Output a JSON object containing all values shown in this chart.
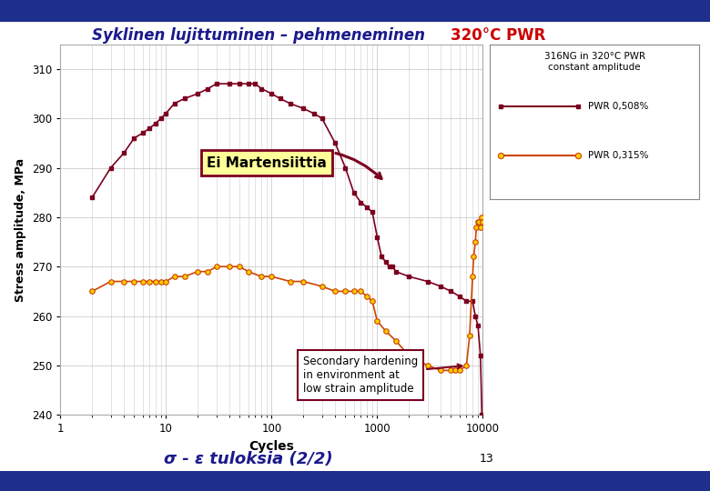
{
  "title_left": "Syklinen lujittuminen – pehmeneminen",
  "title_right": "320°C PWR",
  "xlabel": "Cycles",
  "ylabel": "Stress amplitude, MPa",
  "ylim": [
    240,
    315
  ],
  "yticks": [
    240,
    250,
    260,
    270,
    280,
    290,
    300,
    310
  ],
  "xlim_log": [
    1,
    10000
  ],
  "xticks_log": [
    1,
    10,
    100,
    1000,
    10000
  ],
  "legend_title": "316NG in 320°C PWR\nconstant amplitude",
  "legend_entries": [
    "PWR 0,508%",
    "PWR 0,315%"
  ],
  "annotation1": "Ei Martensiittia",
  "annotation2": "Secondary hardening\nin environment at\nlow strain amplitude",
  "bg_color": "#ffffff",
  "plot_bg_color": "#ffffff",
  "title_left_color": "#1a1a8c",
  "title_right_color": "#cc0000",
  "line1_color": "#7b0020",
  "line2_color": "#cc4400",
  "marker2_color": "#ffcc00",
  "grid_color": "#cccccc",
  "annot1_bg": "#ffff99",
  "annot1_border": "#7b0020",
  "annot2_bg": "#ffffff",
  "annot2_border": "#7b0020",
  "footer_text": "σ - ε tuloksia (2/2)",
  "page_num": "13",
  "top_bar_color": "#1f2f8c",
  "bottom_bar_color": "#1f2f8c",
  "pwr508_x": [
    2,
    3,
    4,
    5,
    6,
    7,
    8,
    9,
    10,
    12,
    15,
    20,
    25,
    30,
    40,
    50,
    60,
    70,
    80,
    100,
    120,
    150,
    200,
    250,
    300,
    400,
    500,
    600,
    700,
    800,
    900,
    1000,
    1100,
    1200,
    1300,
    1400,
    1500,
    2000,
    3000,
    4000,
    5000,
    6000,
    7000,
    8000,
    8500,
    9000,
    9500,
    9800
  ],
  "pwr508_y": [
    284,
    290,
    293,
    296,
    297,
    298,
    299,
    300,
    301,
    303,
    304,
    305,
    306,
    307,
    307,
    307,
    307,
    307,
    306,
    305,
    304,
    303,
    302,
    301,
    300,
    295,
    290,
    285,
    283,
    282,
    281,
    276,
    272,
    271,
    270,
    270,
    269,
    268,
    267,
    266,
    265,
    264,
    263,
    263,
    260,
    258,
    252,
    240
  ],
  "pwr315_x": [
    2,
    3,
    4,
    5,
    6,
    7,
    8,
    9,
    10,
    12,
    15,
    20,
    25,
    30,
    40,
    50,
    60,
    80,
    100,
    150,
    200,
    300,
    400,
    500,
    600,
    700,
    800,
    900,
    1000,
    1200,
    1500,
    2000,
    3000,
    4000,
    5000,
    5500,
    6000,
    7000,
    7500,
    8000,
    8200,
    8500,
    8700,
    9000,
    9200,
    9500,
    9800,
    10000
  ],
  "pwr315_y": [
    265,
    267,
    267,
    267,
    267,
    267,
    267,
    267,
    267,
    268,
    268,
    269,
    269,
    270,
    270,
    270,
    269,
    268,
    268,
    267,
    267,
    266,
    265,
    265,
    265,
    265,
    264,
    263,
    259,
    257,
    255,
    252,
    250,
    249,
    249,
    249,
    249,
    250,
    256,
    268,
    272,
    275,
    278,
    279,
    279,
    278,
    280,
    279
  ]
}
